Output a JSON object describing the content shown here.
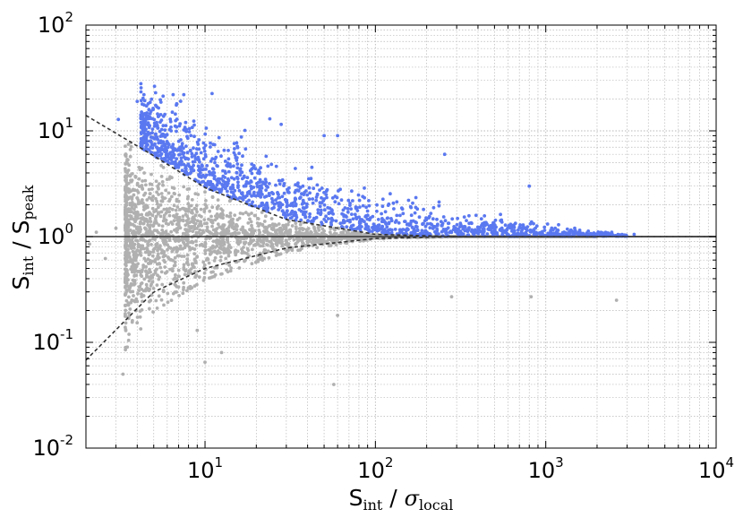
{
  "chart_data": {
    "type": "scatter",
    "title": "",
    "xscale": "log",
    "yscale": "log",
    "xlim": [
      2,
      10000
    ],
    "ylim": [
      0.01,
      100
    ],
    "grid": true,
    "xlabel": {
      "main": "S",
      "sub": "int",
      "sep": " / ",
      "greek": "σ",
      "greek_sub": "local"
    },
    "ylabel": {
      "main": "S",
      "sub": "int",
      "sep": " / S",
      "sub2": "peak"
    },
    "x_ticks": [
      {
        "value": 10,
        "base": "10",
        "exp": "1"
      },
      {
        "value": 100,
        "base": "10",
        "exp": "2"
      },
      {
        "value": 1000,
        "base": "10",
        "exp": "3"
      },
      {
        "value": 10000,
        "base": "10",
        "exp": "4"
      }
    ],
    "y_ticks": [
      {
        "value": 0.01,
        "base": "10",
        "exp": "-2"
      },
      {
        "value": 0.1,
        "base": "10",
        "exp": "-1"
      },
      {
        "value": 1,
        "base": "10",
        "exp": "0"
      },
      {
        "value": 10,
        "base": "10",
        "exp": "1"
      },
      {
        "value": 100,
        "base": "10",
        "exp": "2"
      }
    ],
    "reference_line": {
      "y": 1,
      "color": "#333333"
    },
    "envelope_curves": {
      "color": "#333333",
      "style": "dashed",
      "upper": [
        [
          2,
          14
        ],
        [
          5,
          5.8
        ],
        [
          10,
          2.9
        ],
        [
          30,
          1.45
        ],
        [
          100,
          1.05
        ],
        [
          300,
          1.0
        ],
        [
          10000,
          1.0
        ]
      ],
      "lower": [
        [
          2,
          0.068
        ],
        [
          5,
          0.3
        ],
        [
          10,
          0.5
        ],
        [
          30,
          0.78
        ],
        [
          100,
          0.96
        ],
        [
          300,
          1.0
        ],
        [
          10000,
          1.0
        ]
      ]
    },
    "series": [
      {
        "color": "#b0b0b0",
        "description_points": [
          [
            3.3,
            0.05
          ],
          [
            10,
            0.065
          ],
          [
            9,
            0.13
          ],
          [
            12.5,
            0.08
          ],
          [
            57,
            0.04
          ],
          [
            60,
            0.18
          ],
          [
            280,
            0.27
          ],
          [
            820,
            0.27
          ],
          [
            2600,
            0.25
          ],
          [
            2.1,
            0.85
          ],
          [
            2.3,
            1.1
          ],
          [
            2.6,
            0.62
          ],
          [
            3.0,
            1.2
          ],
          [
            3.5,
            0.45
          ]
        ]
      },
      {
        "color": "#5a78f0",
        "description_points": [
          [
            4,
            19
          ],
          [
            6.5,
            22
          ],
          [
            7.5,
            22
          ],
          [
            11,
            22.5
          ],
          [
            3.1,
            12.8
          ],
          [
            4.4,
            14.5
          ],
          [
            5.2,
            12
          ],
          [
            7.7,
            12
          ],
          [
            8.1,
            10.5
          ],
          [
            28,
            11.5
          ],
          [
            24,
            13
          ],
          [
            50,
            9
          ],
          [
            60,
            9
          ],
          [
            255,
            6
          ],
          [
            800,
            3
          ],
          [
            3300,
            1.05
          ]
        ]
      }
    ]
  }
}
